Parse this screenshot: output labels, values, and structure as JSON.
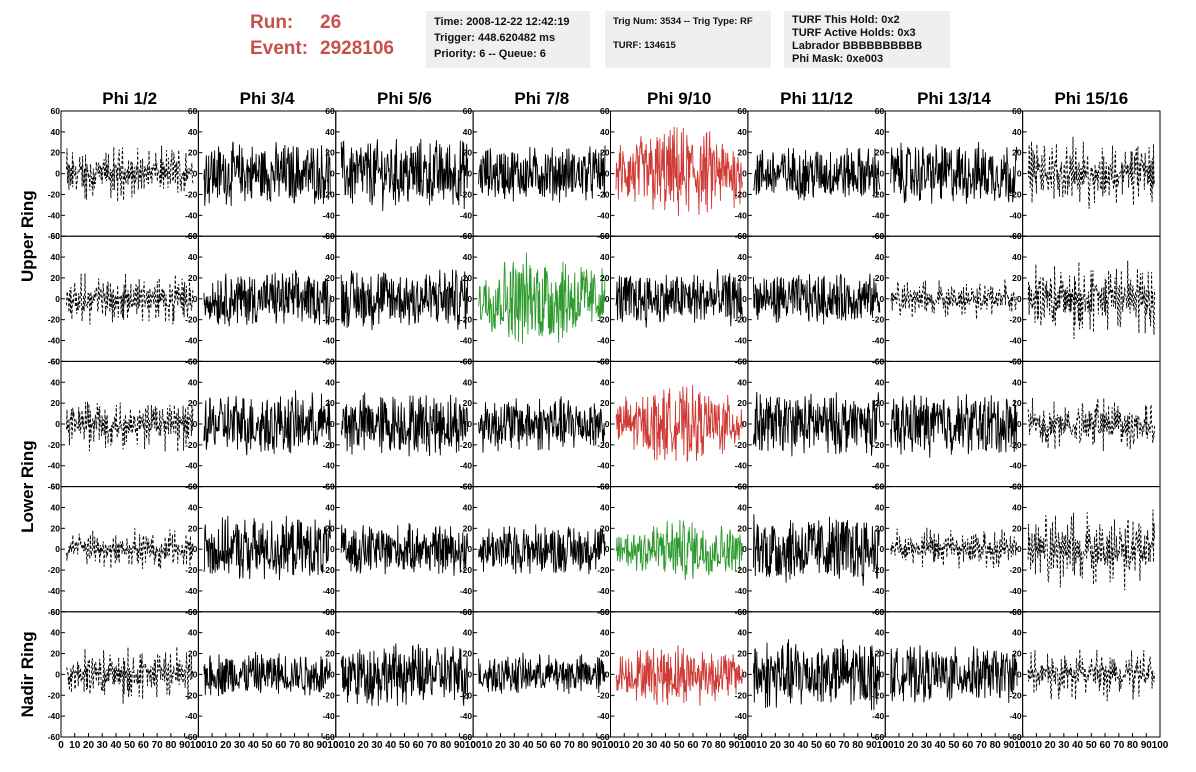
{
  "header": {
    "run_label": "Run:",
    "run_value": "26",
    "event_label": "Event:",
    "event_value": "2928106"
  },
  "info_time": {
    "time": "Time: 2008-12-22 12:42:19",
    "trigger": "Trigger: 448.620482 ms",
    "priority": "Priority: 6 -- Queue: 6"
  },
  "info_trig": {
    "trig": "Trig Num: 3534 -- Trig Type: RF",
    "turf": "TURF: 134615"
  },
  "info_turf": {
    "this_hold": "TURF This Hold: 0x2",
    "active_holds": "TURF Active Holds: 0x3",
    "labrador": "Labrador BBBBBBBBBB",
    "phi_mask": "Phi Mask: 0xe003"
  },
  "chart_data": {
    "type": "line",
    "column_titles": [
      "Phi 1/2",
      "Phi 3/4",
      "Phi 5/6",
      "Phi 7/8",
      "Phi 9/10",
      "Phi 11/12",
      "Phi 13/14",
      "Phi 15/16"
    ],
    "row_group_labels": [
      "Upper Ring",
      "Lower Ring",
      "Nadir Ring"
    ],
    "grid": "5 rows x 8 columns of waveform panels",
    "xlim": [
      0,
      100
    ],
    "ylim": [
      -60,
      60
    ],
    "x_tick_labels": [
      "0",
      "10",
      "20",
      "30",
      "40",
      "50",
      "60",
      "70",
      "80",
      "90",
      "100"
    ],
    "y_tick_labels": [
      "60",
      "40",
      "20",
      "0",
      "-20",
      "-40",
      "-60"
    ],
    "colors": {
      "black": "#000000",
      "red": "#d03a35",
      "green": "#2e9a2e"
    },
    "panels": [
      [
        "dashed",
        "solid",
        "solid",
        "solid",
        "red",
        "solid",
        "solid",
        "dashed"
      ],
      [
        "dashed",
        "solid",
        "solid",
        "green",
        "solid",
        "solid",
        "dashed",
        "dashed"
      ],
      [
        "dashed",
        "solid",
        "solid",
        "solid",
        "red",
        "solid",
        "solid",
        "dashed"
      ],
      [
        "dashed",
        "solid",
        "solid",
        "solid",
        "green",
        "solid",
        "dashed",
        "dashed"
      ],
      [
        "dashed",
        "solid",
        "solid",
        "solid",
        "red",
        "solid",
        "solid",
        "dashed"
      ]
    ],
    "amplitudes": [
      [
        22,
        25,
        28,
        22,
        38,
        22,
        25,
        28
      ],
      [
        20,
        22,
        25,
        38,
        22,
        20,
        16,
        30
      ],
      [
        22,
        25,
        25,
        22,
        30,
        25,
        25,
        22
      ],
      [
        16,
        25,
        20,
        20,
        25,
        28,
        16,
        32
      ],
      [
        22,
        18,
        25,
        16,
        25,
        28,
        22,
        20
      ]
    ]
  }
}
